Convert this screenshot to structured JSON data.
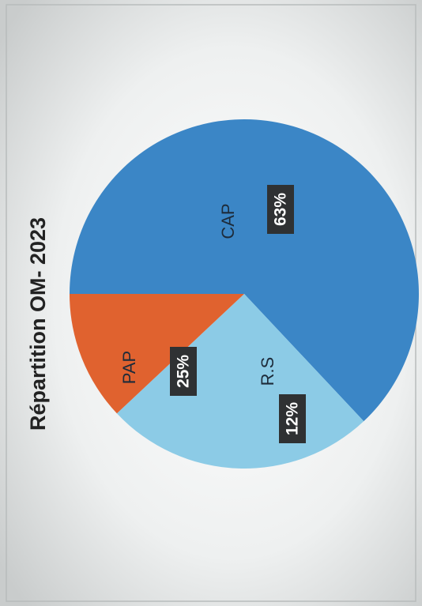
{
  "chart_data": {
    "type": "pie",
    "title": "Répartition OM- 2023",
    "categories": [
      "CAP",
      "PAP",
      "R.S"
    ],
    "values": [
      63,
      25,
      12
    ],
    "value_labels": [
      "63%",
      "25%",
      "12%"
    ],
    "colors": [
      "#3b86c6",
      "#8ccbe6",
      "#e0622f"
    ]
  }
}
